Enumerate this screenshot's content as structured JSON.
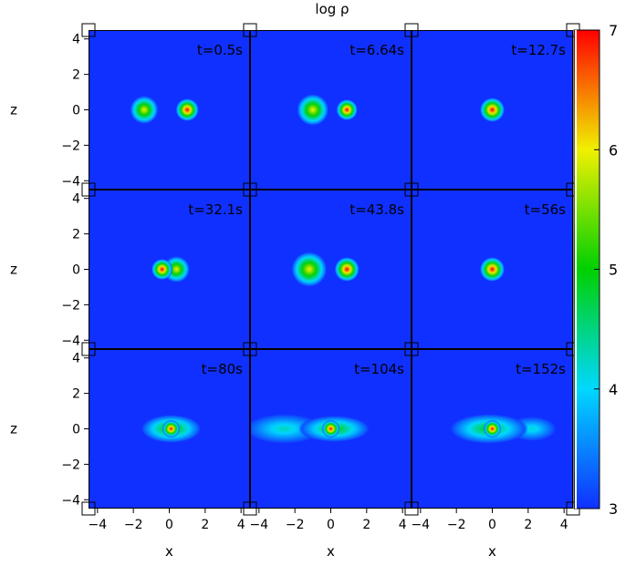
{
  "chart_data": {
    "type": "heatmap",
    "title": "log ρ",
    "xlabel": "x",
    "ylabel": "z",
    "xlim": [
      -4.5,
      4.5
    ],
    "ylim": [
      -4.5,
      4.5
    ],
    "xticks": [
      "−4",
      "−2",
      "0",
      "2",
      "4"
    ],
    "yticks": [
      "4",
      "2",
      "0",
      "−2",
      "−4"
    ],
    "colorbar": {
      "min": 3,
      "max": 7,
      "ticks": [
        "3",
        "4",
        "5",
        "6",
        "7"
      ],
      "colors": [
        "#1030ff",
        "#00d8ff",
        "#00d000",
        "#f0f000",
        "#ff0000"
      ]
    },
    "background_color": "#1030ff",
    "panels": [
      {
        "label": "t=0.5s",
        "blobs": [
          {
            "x": -1.4,
            "z": 0,
            "r": 0.8,
            "peak": 6.0
          },
          {
            "x": 1.0,
            "z": 0,
            "r": 0.65,
            "peak": 7.0
          }
        ]
      },
      {
        "label": "t=6.64s",
        "blobs": [
          {
            "x": -1.0,
            "z": 0,
            "r": 0.9,
            "peak": 6.0
          },
          {
            "x": 0.9,
            "z": 0,
            "r": 0.6,
            "peak": 7.0
          }
        ]
      },
      {
        "label": "t=12.7s",
        "blobs": [
          {
            "x": 0.0,
            "z": 0,
            "r": 0.7,
            "peak": 7.0
          }
        ]
      },
      {
        "label": "t=32.1s",
        "blobs": [
          {
            "x": -0.4,
            "z": 0,
            "r": 0.6,
            "peak": 7.0
          },
          {
            "x": 0.4,
            "z": 0,
            "r": 0.75,
            "peak": 6.0
          }
        ]
      },
      {
        "label": "t=43.8s",
        "blobs": [
          {
            "x": -1.2,
            "z": 0,
            "r": 1.0,
            "peak": 6.0
          },
          {
            "x": 0.9,
            "z": 0,
            "r": 0.7,
            "peak": 7.0
          }
        ]
      },
      {
        "label": "t=56s",
        "blobs": [
          {
            "x": 0.0,
            "z": 0,
            "r": 0.7,
            "peak": 7.0
          }
        ]
      },
      {
        "label": "t=80s",
        "blobs": [
          {
            "x": 0.1,
            "z": 0,
            "r": 0.5,
            "peak": 7.0
          },
          {
            "x": 0.1,
            "z": 0,
            "rx": 1.7,
            "rz": 0.8,
            "peak": 5.2
          }
        ]
      },
      {
        "label": "t=104s",
        "blobs": [
          {
            "x": 0.0,
            "z": 0,
            "r": 0.5,
            "peak": 7.0
          },
          {
            "x": 0.2,
            "z": 0,
            "rx": 2.0,
            "rz": 0.75,
            "peak": 5.0
          },
          {
            "x": -2.6,
            "z": 0,
            "rx": 2.2,
            "rz": 0.85,
            "peak": 4.3
          }
        ]
      },
      {
        "label": "t=152s",
        "blobs": [
          {
            "x": 0.0,
            "z": 0,
            "r": 0.5,
            "peak": 7.0
          },
          {
            "x": -0.2,
            "z": 0,
            "rx": 2.2,
            "rz": 0.85,
            "peak": 4.9
          },
          {
            "x": 2.2,
            "z": 0,
            "rx": 1.4,
            "rz": 0.7,
            "peak": 4.2
          }
        ]
      }
    ]
  }
}
